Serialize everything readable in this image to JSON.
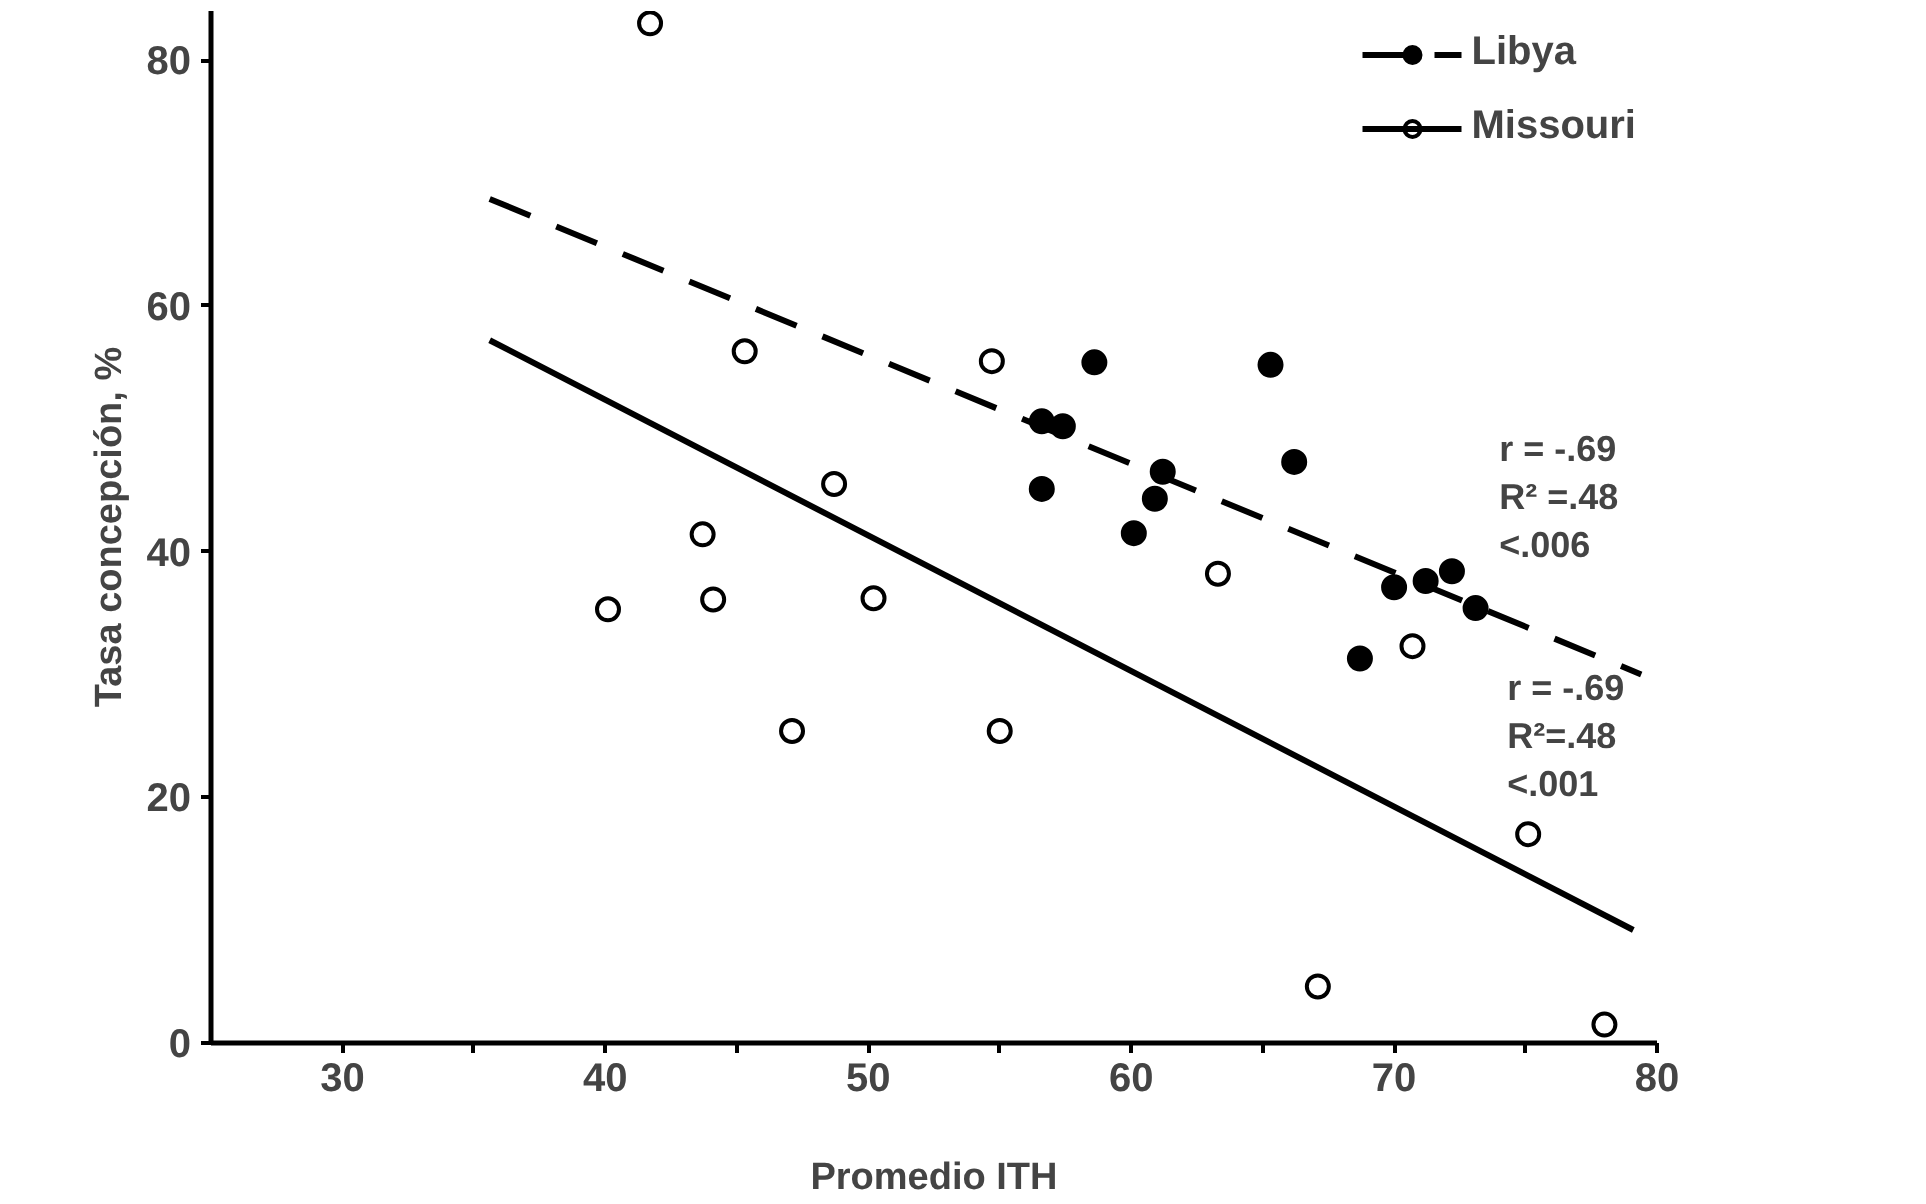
{
  "chart_data": {
    "type": "scatter",
    "xlabel": "Promedio ITH",
    "ylabel": "Tasa concepción, %",
    "xlim": [
      25,
      80
    ],
    "ylim": [
      0,
      84
    ],
    "xticks": [
      30,
      {
        "value": 35,
        "label": null
      },
      40,
      {
        "value": 45,
        "label": null
      },
      50,
      {
        "value": 55,
        "label": null
      },
      60,
      {
        "value": 65,
        "label": null
      },
      70,
      {
        "value": 75,
        "label": null
      },
      80
    ],
    "yticks": [
      0,
      20,
      40,
      60,
      80
    ],
    "grid": false,
    "legend": "top right",
    "marker": "circle",
    "series": [
      {
        "name": "Libya",
        "color": "#000000",
        "x": [
          58.6,
          65.3,
          56.6,
          57.4,
          61.2,
          66.2,
          56.6,
          60.9,
          60.1,
          70.0,
          71.2,
          72.2,
          73.1,
          68.7
        ],
        "values": [
          55.4,
          55.2,
          50.6,
          50.2,
          46.5,
          47.3,
          45.1,
          44.3,
          41.5,
          37.1,
          37.6,
          38.4,
          35.4,
          31.3
        ]
      },
      {
        "type": "line",
        "marker": "none",
        "line_style": "dashed",
        "color": "#000000",
        "x": [
          35.6,
          79.4
        ],
        "values": [
          68.7,
          30.0
        ]
      },
      {
        "name": "Missouri",
        "color": "#ffffff",
        "x": [
          41.7,
          45.3,
          54.7,
          48.7,
          43.7,
          40.1,
          44.1,
          50.2,
          47.1,
          55.0,
          63.3,
          70.7,
          75.1,
          67.1,
          78.0
        ],
        "values": [
          83,
          56.3,
          55.5,
          45.5,
          41.4,
          35.3,
          36.1,
          36.2,
          25.4,
          25.4,
          38.2,
          32.3,
          17,
          4.6,
          1.5
        ]
      },
      {
        "type": "line",
        "marker": "none",
        "line_style": "solid",
        "color": "#000000",
        "x": [
          35.6,
          79.1
        ],
        "values": [
          57.2,
          9.2
        ]
      }
    ],
    "annotations": [
      "r = -.69\nR² =.48\n  <.006",
      "r = -.69\nR²=.48\n  <.001"
    ]
  }
}
